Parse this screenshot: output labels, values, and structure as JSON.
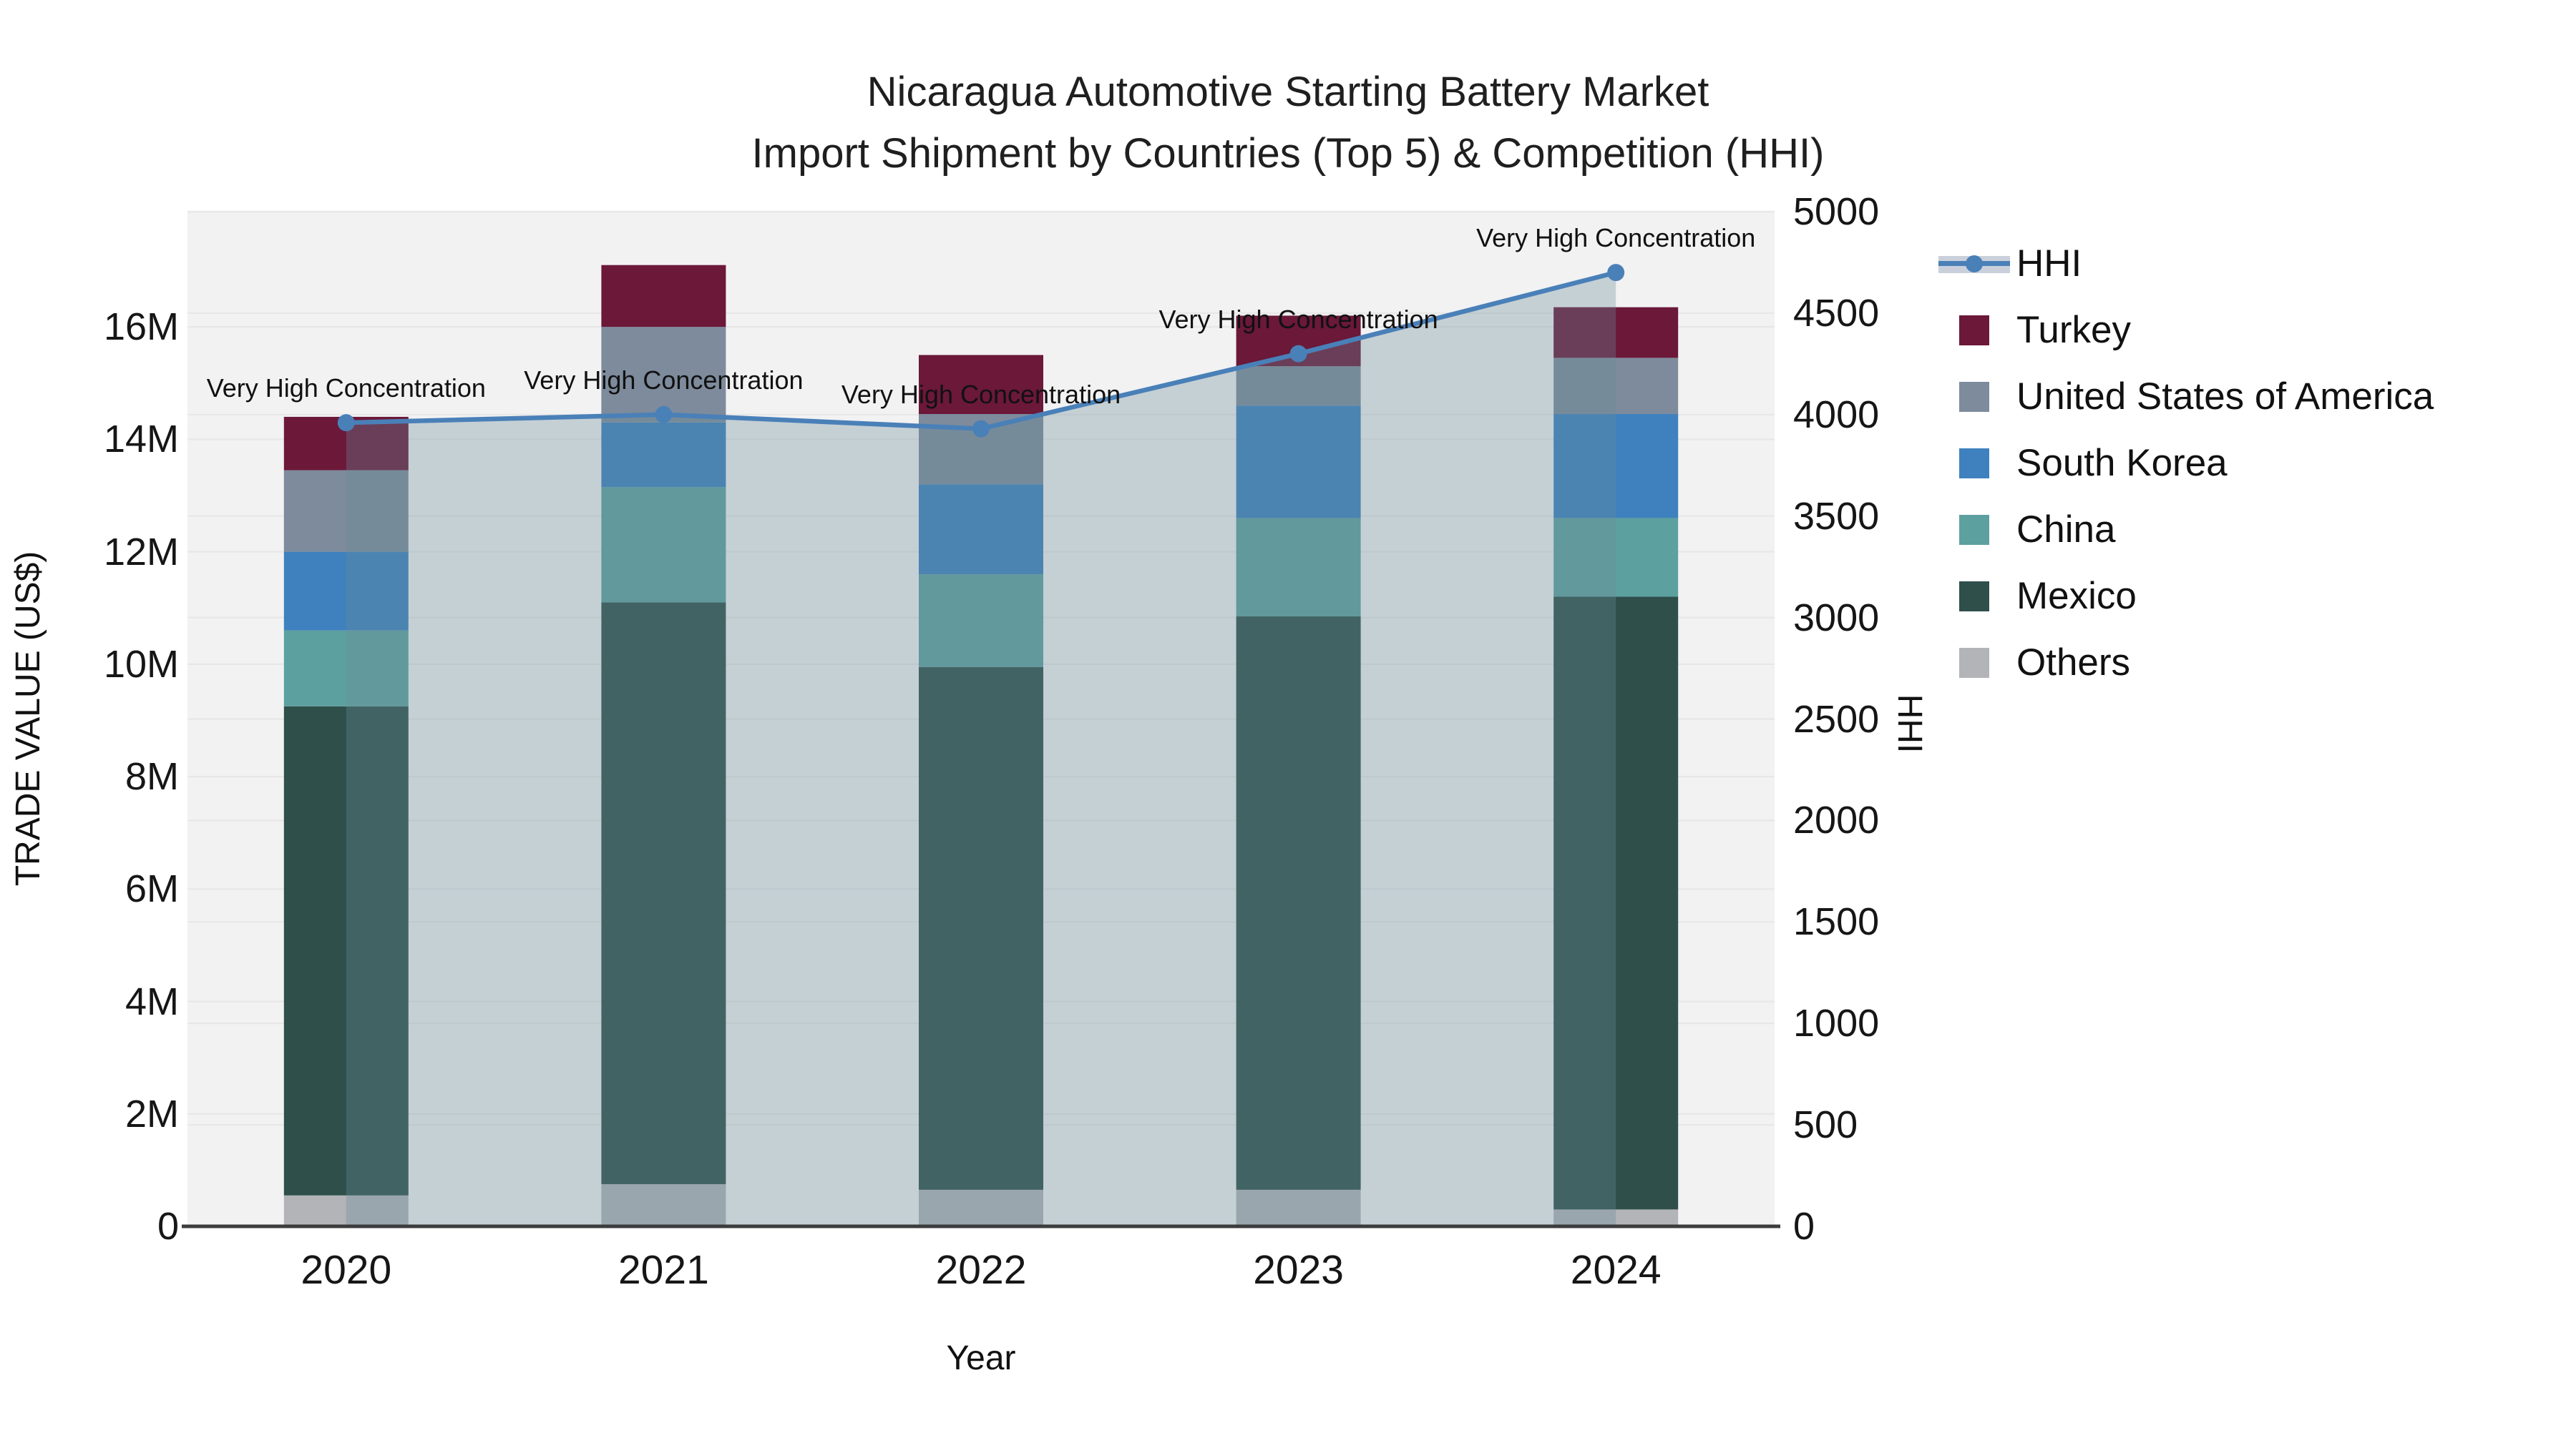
{
  "header": {
    "title_line1": "Nicaragua Automotive Starting Battery Market",
    "title_line2": "Import Shipment by Countries (Top 5) & Competition (HHI)"
  },
  "axes": {
    "y_left_title": "TRADE VALUE (US$)",
    "y_right_title": "HHI",
    "x_title": "Year",
    "y_left_tick_labels": [
      "0",
      "2M",
      "4M",
      "6M",
      "8M",
      "10M",
      "12M",
      "14M",
      "16M"
    ],
    "y_left_tick_values": [
      0,
      2,
      4,
      6,
      8,
      10,
      12,
      14,
      16
    ],
    "y_right_tick_labels": [
      "0",
      "500",
      "1000",
      "1500",
      "2000",
      "2500",
      "3000",
      "3500",
      "4000",
      "4500",
      "5000"
    ],
    "y_right_tick_values": [
      0,
      500,
      1000,
      1500,
      2000,
      2500,
      3000,
      3500,
      4000,
      4500,
      5000
    ]
  },
  "chart_data": {
    "type": "bar",
    "subtype": "stacked-bar-with-line",
    "categories": [
      "2020",
      "2021",
      "2022",
      "2023",
      "2024"
    ],
    "series": [
      {
        "name": "Others",
        "color": "#b2b4b8",
        "values": [
          0.55,
          0.75,
          0.65,
          0.65,
          0.3
        ]
      },
      {
        "name": "Mexico",
        "color": "#2f4f4b",
        "values": [
          8.7,
          10.35,
          9.3,
          10.2,
          10.9
        ]
      },
      {
        "name": "China",
        "color": "#5da0a0",
        "values": [
          1.35,
          2.05,
          1.65,
          1.75,
          1.4
        ]
      },
      {
        "name": "South Korea",
        "color": "#3e81be",
        "values": [
          1.4,
          1.15,
          1.6,
          2.0,
          1.85
        ]
      },
      {
        "name": "United States of America",
        "color": "#7d8b9c",
        "values": [
          1.45,
          1.7,
          1.25,
          0.7,
          1.0
        ]
      },
      {
        "name": "Turkey",
        "color": "#6b1839",
        "values": [
          0.95,
          1.1,
          1.05,
          0.9,
          0.9
        ]
      }
    ],
    "line_series": {
      "name": "HHI",
      "color": "#4a80b8",
      "values": [
        3960,
        4000,
        3930,
        4300,
        4700
      ],
      "axis": "right",
      "fill_to_zero": true
    },
    "annotations": [
      "Very High Concentration",
      "Very High Concentration",
      "Very High Concentration",
      "Very High Concentration",
      "Very High Concentration"
    ],
    "xlabel": "Year",
    "ylabel": "TRADE VALUE (US$)",
    "ylabel_right": "HHI",
    "y_left_range": [
      0,
      18.05
    ],
    "y_right_range": [
      0,
      5000
    ],
    "grid": true,
    "legend_position": "right"
  },
  "legend": {
    "items": [
      {
        "label": "HHI",
        "type": "line",
        "color": "#4a80b8"
      },
      {
        "label": "Turkey",
        "type": "square",
        "color": "#6b1839"
      },
      {
        "label": "United States of America",
        "type": "square",
        "color": "#7d8b9c"
      },
      {
        "label": "South Korea",
        "type": "square",
        "color": "#3e81be"
      },
      {
        "label": "China",
        "type": "square",
        "color": "#5da0a0"
      },
      {
        "label": "Mexico",
        "type": "square",
        "color": "#2f4f4b"
      },
      {
        "label": "Others",
        "type": "square",
        "color": "#b2b4b8"
      }
    ]
  },
  "colors": {
    "plot_bg": "#f2f2f3",
    "grid": "#e7e7e7",
    "axis_line": "#3c3c3c",
    "band_overlay": "rgba(107,140,152,0.33)",
    "band_legend": "#cad0db",
    "line": "#4a80b8"
  }
}
